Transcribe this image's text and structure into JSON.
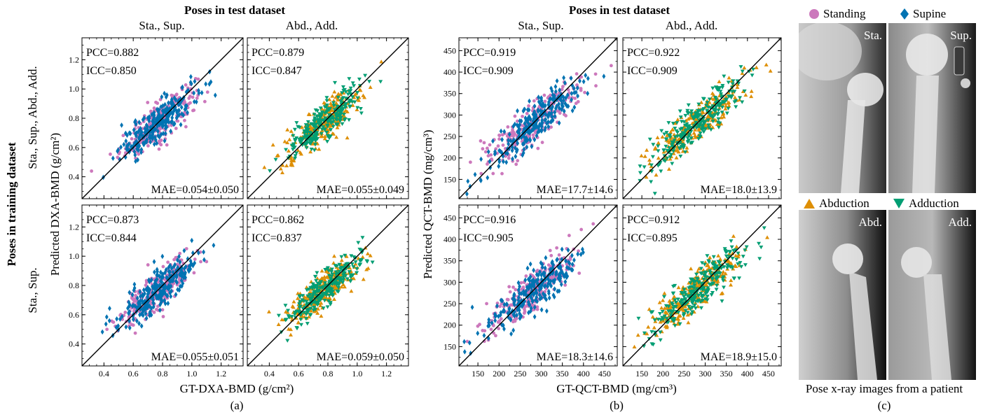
{
  "colors": {
    "standing": "#cc78bc",
    "supine": "#0173b2",
    "abduction": "#de8f05",
    "adduction": "#029e73",
    "identity_line": "#000000"
  },
  "header_a": "Poses in test dataset",
  "header_b": "Poses in test dataset",
  "col_labels": [
    "Sta., Sup.",
    "Abd., Add."
  ],
  "row_group_label": "Poses in training dataset",
  "row_labels": [
    "Sta., Sup., Abd., Add.",
    "Sta., Sup."
  ],
  "panel_a": {
    "ylabel": "Predicted DXA-BMD (g/cm²)",
    "xlabel": "GT-DXA-BMD (g/cm²)",
    "caption": "(a)"
  },
  "panel_b": {
    "ylabel": "Predicted QCT-BMD (mg/cm³)",
    "xlabel": "GT-QCT-BMD (mg/cm³)",
    "caption": "(b)"
  },
  "chart_data": [
    {
      "type": "scatter",
      "panel": "a",
      "row": 0,
      "col": 0,
      "xlim": [
        0.25,
        1.35
      ],
      "ylim": [
        0.25,
        1.35
      ],
      "xticks": [
        0.4,
        0.6,
        0.8,
        1.0,
        1.2
      ],
      "yticks": [
        0.4,
        0.6,
        0.8,
        1.0,
        1.2
      ],
      "pcc": "PCC=0.882",
      "icc": "ICC=0.850",
      "mae": "MAE=0.054±0.050",
      "series": [
        {
          "name": "Standing",
          "marker": "circle"
        },
        {
          "name": "Supine",
          "marker": "diamond"
        }
      ]
    },
    {
      "type": "scatter",
      "panel": "a",
      "row": 0,
      "col": 1,
      "xlim": [
        0.25,
        1.35
      ],
      "ylim": [
        0.25,
        1.35
      ],
      "xticks": [
        0.4,
        0.6,
        0.8,
        1.0,
        1.2
      ],
      "yticks": [
        0.4,
        0.6,
        0.8,
        1.0,
        1.2
      ],
      "pcc": "PCC=0.879",
      "icc": "ICC=0.847",
      "mae": "MAE=0.055±0.049",
      "series": [
        {
          "name": "Abduction",
          "marker": "triangle-up"
        },
        {
          "name": "Adduction",
          "marker": "triangle-down"
        }
      ]
    },
    {
      "type": "scatter",
      "panel": "a",
      "row": 1,
      "col": 0,
      "xlim": [
        0.25,
        1.35
      ],
      "ylim": [
        0.25,
        1.35
      ],
      "xticks": [
        0.4,
        0.6,
        0.8,
        1.0,
        1.2
      ],
      "yticks": [
        0.4,
        0.6,
        0.8,
        1.0,
        1.2
      ],
      "pcc": "PCC=0.873",
      "icc": "ICC=0.844",
      "mae": "MAE=0.055±0.051",
      "series": [
        {
          "name": "Standing",
          "marker": "circle"
        },
        {
          "name": "Supine",
          "marker": "diamond"
        }
      ]
    },
    {
      "type": "scatter",
      "panel": "a",
      "row": 1,
      "col": 1,
      "xlim": [
        0.25,
        1.35
      ],
      "ylim": [
        0.25,
        1.35
      ],
      "xticks": [
        0.4,
        0.6,
        0.8,
        1.0,
        1.2
      ],
      "yticks": [
        0.4,
        0.6,
        0.8,
        1.0,
        1.2
      ],
      "pcc": "PCC=0.862",
      "icc": "ICC=0.837",
      "mae": "MAE=0.059±0.050",
      "series": [
        {
          "name": "Abduction",
          "marker": "triangle-up"
        },
        {
          "name": "Adduction",
          "marker": "triangle-down"
        }
      ]
    },
    {
      "type": "scatter",
      "panel": "b",
      "row": 0,
      "col": 0,
      "xlim": [
        105,
        480
      ],
      "ylim": [
        105,
        480
      ],
      "xticks": [
        150,
        200,
        250,
        300,
        350,
        400,
        450
      ],
      "yticks": [
        150,
        200,
        250,
        300,
        350,
        400,
        450
      ],
      "pcc": "PCC=0.919",
      "icc": "ICC=0.909",
      "mae": "MAE=17.7±14.6",
      "series": [
        {
          "name": "Standing",
          "marker": "circle"
        },
        {
          "name": "Supine",
          "marker": "diamond"
        }
      ]
    },
    {
      "type": "scatter",
      "panel": "b",
      "row": 0,
      "col": 1,
      "xlim": [
        105,
        480
      ],
      "ylim": [
        105,
        480
      ],
      "xticks": [
        150,
        200,
        250,
        300,
        350,
        400,
        450
      ],
      "yticks": [
        150,
        200,
        250,
        300,
        350,
        400,
        450
      ],
      "pcc": "PCC=0.922",
      "icc": "ICC=0.909",
      "mae": "MAE=18.0±13.9",
      "series": [
        {
          "name": "Abduction",
          "marker": "triangle-up"
        },
        {
          "name": "Adduction",
          "marker": "triangle-down"
        }
      ]
    },
    {
      "type": "scatter",
      "panel": "b",
      "row": 1,
      "col": 0,
      "xlim": [
        105,
        480
      ],
      "ylim": [
        105,
        480
      ],
      "xticks": [
        150,
        200,
        250,
        300,
        350,
        400,
        450
      ],
      "yticks": [
        150,
        200,
        250,
        300,
        350,
        400,
        450
      ],
      "pcc": "PCC=0.916",
      "icc": "ICC=0.905",
      "mae": "MAE=18.3±14.6",
      "series": [
        {
          "name": "Standing",
          "marker": "circle"
        },
        {
          "name": "Supine",
          "marker": "diamond"
        }
      ]
    },
    {
      "type": "scatter",
      "panel": "b",
      "row": 1,
      "col": 1,
      "xlim": [
        105,
        480
      ],
      "ylim": [
        105,
        480
      ],
      "xticks": [
        150,
        200,
        250,
        300,
        350,
        400,
        450
      ],
      "yticks": [
        150,
        200,
        250,
        300,
        350,
        400,
        450
      ],
      "pcc": "PCC=0.912",
      "icc": "ICC=0.895",
      "mae": "MAE=18.9±15.0",
      "series": [
        {
          "name": "Abduction",
          "marker": "triangle-up"
        },
        {
          "name": "Adduction",
          "marker": "triangle-down"
        }
      ]
    }
  ],
  "panel_c": {
    "legend": [
      {
        "label": "Standing",
        "marker": "circle",
        "color": "#cc78bc"
      },
      {
        "label": "Supine",
        "marker": "diamond",
        "color": "#0173b2"
      },
      {
        "label": "Abduction",
        "marker": "triangle-up",
        "color": "#de8f05"
      },
      {
        "label": "Adduction",
        "marker": "triangle-down",
        "color": "#029e73"
      }
    ],
    "image_labels": [
      "Sta.",
      "Sup.",
      "Abd.",
      "Add."
    ],
    "caption_text": "Pose x-ray images from a patient",
    "caption": "(c)"
  }
}
